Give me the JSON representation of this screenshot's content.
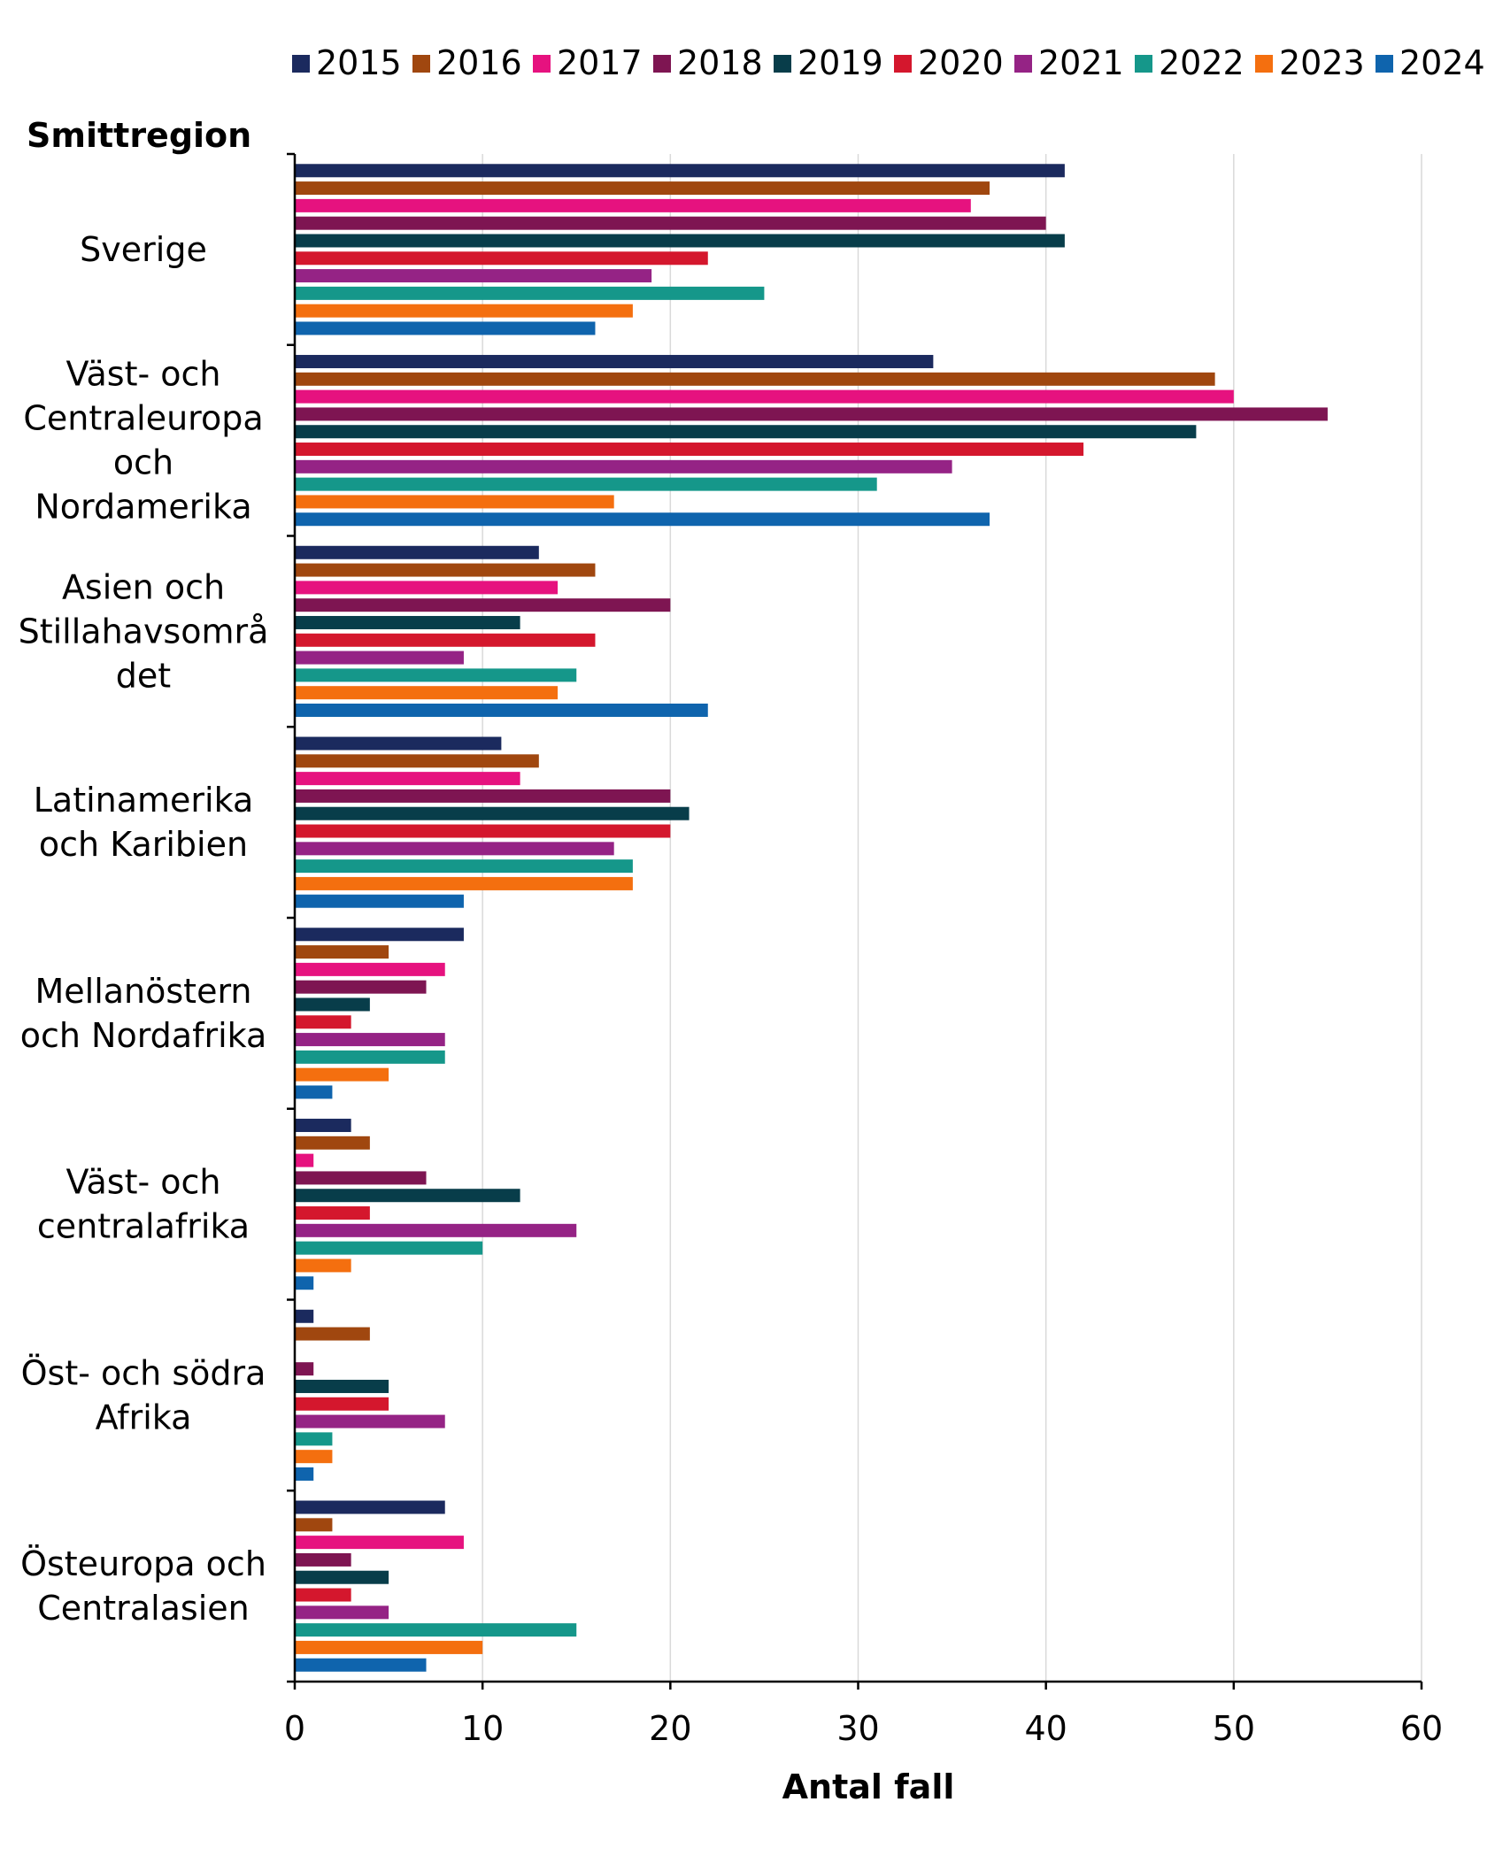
{
  "chart_data": {
    "type": "bar",
    "orientation": "horizontal",
    "yaxis_title": "Smittregion",
    "xlabel": "Antal fall",
    "xlim": [
      0,
      60
    ],
    "xticks": [
      0,
      10,
      20,
      30,
      40,
      50,
      60
    ],
    "grid": "vertical",
    "legend_position": "top",
    "categories": [
      [
        "Sverige"
      ],
      [
        "Väst- och",
        "Centraleuropa",
        "och",
        "Nordamerika"
      ],
      [
        "Asien och",
        "Stillahavsområ",
        "det"
      ],
      [
        "Latinamerika",
        "och Karibien"
      ],
      [
        "Mellanöstern",
        "och Nordafrika"
      ],
      [
        "Väst- och",
        "centralafrika"
      ],
      [
        "Öst- och södra",
        "Afrika"
      ],
      [
        "Östeuropa och",
        "Centralasien"
      ]
    ],
    "series": [
      {
        "name": "2015",
        "color": "#1b2a5e",
        "values": [
          41,
          34,
          13,
          11,
          9,
          3,
          1,
          8
        ]
      },
      {
        "name": "2016",
        "color": "#a0470f",
        "values": [
          37,
          49,
          16,
          13,
          5,
          4,
          4,
          2
        ]
      },
      {
        "name": "2017",
        "color": "#e6127f",
        "values": [
          36,
          50,
          14,
          12,
          8,
          1,
          0,
          9
        ]
      },
      {
        "name": "2018",
        "color": "#7e1552",
        "values": [
          40,
          55,
          20,
          20,
          7,
          7,
          1,
          3
        ]
      },
      {
        "name": "2019",
        "color": "#083d4a",
        "values": [
          41,
          48,
          12,
          21,
          4,
          12,
          5,
          5
        ]
      },
      {
        "name": "2020",
        "color": "#d4172d",
        "values": [
          22,
          42,
          16,
          20,
          3,
          4,
          5,
          3
        ]
      },
      {
        "name": "2021",
        "color": "#952385",
        "values": [
          19,
          35,
          9,
          17,
          8,
          15,
          8,
          5
        ]
      },
      {
        "name": "2022",
        "color": "#15978a",
        "values": [
          25,
          31,
          15,
          18,
          8,
          10,
          2,
          15
        ]
      },
      {
        "name": "2023",
        "color": "#f46f0f",
        "values": [
          18,
          17,
          14,
          18,
          5,
          3,
          2,
          10
        ]
      },
      {
        "name": "2024",
        "color": "#0f64ad",
        "values": [
          16,
          37,
          22,
          9,
          2,
          1,
          1,
          7
        ]
      }
    ]
  }
}
